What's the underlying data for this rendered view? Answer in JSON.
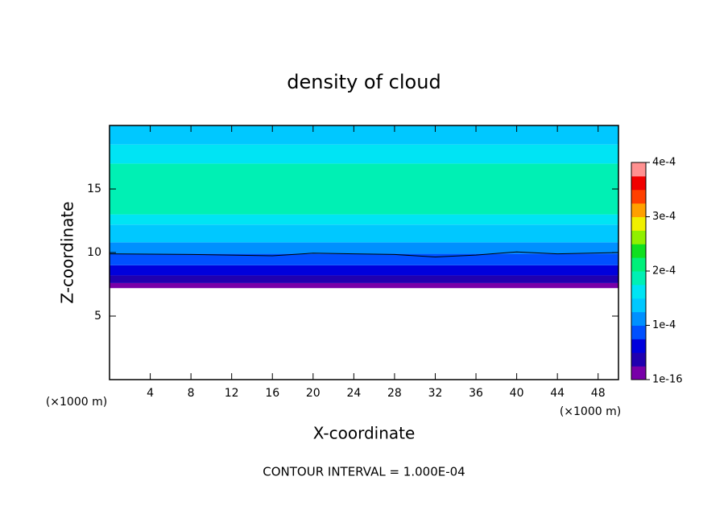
{
  "chart_data": {
    "type": "contour",
    "title": "density of cloud",
    "x_label": "X-coordinate",
    "y_label": "Z-coordinate",
    "x_unit": "(×1000 m)",
    "y_unit": "(×1000 m)",
    "footer": "CONTOUR INTERVAL = 1.000E-04",
    "xlim": [
      0,
      50
    ],
    "xticks": [
      4,
      8,
      12,
      16,
      20,
      24,
      28,
      32,
      36,
      40,
      44,
      48
    ],
    "ylim": [
      0,
      20
    ],
    "yticks": [
      5,
      10,
      15
    ],
    "layers": {
      "z": [
        7.2,
        7.6,
        8.2,
        9.0,
        9.9,
        10.8,
        12.2,
        13.0,
        17.0,
        18.5,
        20
      ],
      "values": [
        1e-05,
        3e-05,
        6e-05,
        8e-05,
        0.000105,
        0.00013,
        0.00016,
        0.00018,
        0.00016,
        0.00014
      ]
    },
    "contour": {
      "value": 0.0001,
      "color": "#000000",
      "x": [
        0,
        8,
        16,
        20,
        24,
        28,
        32,
        36,
        40,
        44,
        50
      ],
      "z": [
        9.9,
        9.85,
        9.75,
        9.95,
        9.9,
        9.85,
        9.65,
        9.8,
        10.05,
        9.9,
        10.0
      ]
    },
    "colorbar": {
      "lim": [
        0,
        0.0004
      ],
      "colors": [
        "#7800a8",
        "#2000b0",
        "#0000dc",
        "#0050ff",
        "#0090ff",
        "#00c8ff",
        "#00e4f4",
        "#00f0b4",
        "#00f07a",
        "#10e020",
        "#90f000",
        "#f0f000",
        "#ffa000",
        "#ff4000",
        "#f00000",
        "#ff9090"
      ],
      "ticks": [
        {
          "value": 1e-16,
          "label": "1e-16"
        },
        {
          "value": 0.0001,
          "label": "1e-4"
        },
        {
          "value": 0.0002,
          "label": "2e-4"
        },
        {
          "value": 0.0003,
          "label": "3e-4"
        },
        {
          "value": 0.0004,
          "label": "4e-4"
        }
      ]
    }
  }
}
